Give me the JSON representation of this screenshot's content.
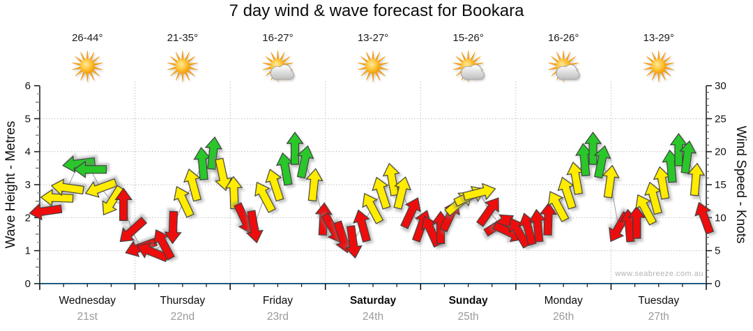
{
  "title": "7 day wind & wave forecast for Bookara",
  "watermark": "www.seabreeze.com.au",
  "chart_data": {
    "type": "wind_arrow_timeseries",
    "title": "7 day wind & wave forecast for Bookara",
    "left_axis": {
      "label": "Wave Height - Metres",
      "min": 0,
      "max": 6,
      "major_tick": 1,
      "ticks": [
        0,
        1,
        2,
        3,
        4,
        5,
        6
      ]
    },
    "right_axis": {
      "label": "Wind Speed - Knots",
      "min": 0,
      "max": 30,
      "major_tick": 5,
      "ticks": [
        0,
        5,
        10,
        15,
        20,
        25,
        30
      ]
    },
    "grid": "dotted",
    "legend_position": "none",
    "days": [
      {
        "name": "Wednesday",
        "date": "21st",
        "temp_range": "26-44°",
        "icon": "sunny-icon",
        "weekend": false
      },
      {
        "name": "Thursday",
        "date": "22nd",
        "temp_range": "21-35°",
        "icon": "sunny-icon",
        "weekend": false
      },
      {
        "name": "Friday",
        "date": "23rd",
        "temp_range": "16-27°",
        "icon": "partly-cloudy-icon",
        "weekend": false
      },
      {
        "name": "Saturday",
        "date": "24th",
        "temp_range": "13-27°",
        "icon": "sunny-icon",
        "weekend": true
      },
      {
        "name": "Sunday",
        "date": "25th",
        "temp_range": "15-26°",
        "icon": "partly-cloudy-icon",
        "weekend": true
      },
      {
        "name": "Monday",
        "date": "26th",
        "temp_range": "16-26°",
        "icon": "partly-cloudy-icon",
        "weekend": false
      },
      {
        "name": "Tuesday",
        "date": "27th",
        "temp_range": "13-29°",
        "icon": "sunny-icon",
        "weekend": false
      }
    ],
    "speed_colors": {
      "red": "#ee1111",
      "yellow": "#ffec00",
      "green": "#2cc72c"
    },
    "axis_colors": {
      "x_axis": "#1e5b80",
      "y_axis": "#222222",
      "grid": "#bdbdbd",
      "connector": "#9a9a9a"
    },
    "arrow_note": "t = time in days from start (0-7), knots = wind speed on right axis (wave metres = knots/5 on left axis), dir_deg = on-screen arrow heading (0 = up, clockwise)",
    "arrows": [
      {
        "t": 0.06,
        "knots": 11.0,
        "dir_deg": 262,
        "color": "red"
      },
      {
        "t": 0.18,
        "knots": 13.0,
        "dir_deg": 272,
        "color": "yellow"
      },
      {
        "t": 0.29,
        "knots": 14.5,
        "dir_deg": 278,
        "color": "yellow"
      },
      {
        "t": 0.41,
        "knots": 18.2,
        "dir_deg": 263,
        "color": "green"
      },
      {
        "t": 0.53,
        "knots": 17.3,
        "dir_deg": 270,
        "color": "green"
      },
      {
        "t": 0.64,
        "knots": 14.5,
        "dir_deg": 250,
        "color": "yellow"
      },
      {
        "t": 0.76,
        "knots": 12.5,
        "dir_deg": 212,
        "color": "yellow"
      },
      {
        "t": 0.88,
        "knots": 12.0,
        "dir_deg": 0,
        "color": "red"
      },
      {
        "t": 0.97,
        "knots": 8.0,
        "dir_deg": 228,
        "color": "red"
      },
      {
        "t": 1.06,
        "knots": 5.5,
        "dir_deg": 250,
        "color": "red"
      },
      {
        "t": 1.18,
        "knots": 4.8,
        "dir_deg": 292,
        "color": "red"
      },
      {
        "t": 1.3,
        "knots": 6.0,
        "dir_deg": 332,
        "color": "red"
      },
      {
        "t": 1.4,
        "knots": 8.5,
        "dir_deg": 182,
        "color": "red"
      },
      {
        "t": 1.51,
        "knots": 12.5,
        "dir_deg": 335,
        "color": "yellow"
      },
      {
        "t": 1.61,
        "knots": 15.0,
        "dir_deg": 345,
        "color": "yellow"
      },
      {
        "t": 1.71,
        "knots": 18.2,
        "dir_deg": 355,
        "color": "green"
      },
      {
        "t": 1.82,
        "knots": 19.8,
        "dir_deg": 6,
        "color": "green"
      },
      {
        "t": 1.92,
        "knots": 16.5,
        "dir_deg": 168,
        "color": "yellow"
      },
      {
        "t": 2.04,
        "knots": 13.8,
        "dir_deg": 358,
        "color": "yellow"
      },
      {
        "t": 2.15,
        "knots": 9.8,
        "dir_deg": 155,
        "color": "red"
      },
      {
        "t": 2.25,
        "knots": 8.6,
        "dir_deg": 170,
        "color": "red"
      },
      {
        "t": 2.36,
        "knots": 13.2,
        "dir_deg": 332,
        "color": "yellow"
      },
      {
        "t": 2.47,
        "knots": 15.0,
        "dir_deg": 342,
        "color": "yellow"
      },
      {
        "t": 2.58,
        "knots": 17.4,
        "dir_deg": 350,
        "color": "green"
      },
      {
        "t": 2.68,
        "knots": 20.5,
        "dir_deg": 0,
        "color": "green"
      },
      {
        "t": 2.78,
        "knots": 18.5,
        "dir_deg": 12,
        "color": "green"
      },
      {
        "t": 2.88,
        "knots": 15.0,
        "dir_deg": 6,
        "color": "yellow"
      },
      {
        "t": 2.98,
        "knots": 9.8,
        "dir_deg": 3,
        "color": "red"
      },
      {
        "t": 3.08,
        "knots": 8.3,
        "dir_deg": 150,
        "color": "red"
      },
      {
        "t": 3.18,
        "knots": 7.0,
        "dir_deg": 162,
        "color": "red"
      },
      {
        "t": 3.29,
        "knots": 6.3,
        "dir_deg": 172,
        "color": "red"
      },
      {
        "t": 3.39,
        "knots": 8.8,
        "dir_deg": 345,
        "color": "red"
      },
      {
        "t": 3.49,
        "knots": 11.5,
        "dir_deg": 332,
        "color": "yellow"
      },
      {
        "t": 3.59,
        "knots": 13.8,
        "dir_deg": 342,
        "color": "yellow"
      },
      {
        "t": 3.7,
        "knots": 15.8,
        "dir_deg": 350,
        "color": "yellow"
      },
      {
        "t": 3.8,
        "knots": 13.8,
        "dir_deg": 14,
        "color": "yellow"
      },
      {
        "t": 3.9,
        "knots": 10.8,
        "dir_deg": 25,
        "color": "red"
      },
      {
        "t": 4.01,
        "knots": 8.8,
        "dir_deg": 20,
        "color": "red"
      },
      {
        "t": 4.11,
        "knots": 8.0,
        "dir_deg": 336,
        "color": "red"
      },
      {
        "t": 4.21,
        "knots": 8.5,
        "dir_deg": 0,
        "color": "red"
      },
      {
        "t": 4.31,
        "knots": 10.3,
        "dir_deg": 25,
        "color": "red"
      },
      {
        "t": 4.41,
        "knots": 12.3,
        "dir_deg": 50,
        "color": "yellow"
      },
      {
        "t": 4.52,
        "knots": 13.3,
        "dir_deg": 65,
        "color": "yellow"
      },
      {
        "t": 4.62,
        "knots": 13.8,
        "dir_deg": 76,
        "color": "yellow"
      },
      {
        "t": 4.72,
        "knots": 11.0,
        "dir_deg": 35,
        "color": "red"
      },
      {
        "t": 4.83,
        "knots": 9.0,
        "dir_deg": 58,
        "color": "red"
      },
      {
        "t": 4.93,
        "knots": 7.8,
        "dir_deg": 115,
        "color": "red"
      },
      {
        "t": 5.03,
        "knots": 7.8,
        "dir_deg": 330,
        "color": "red"
      },
      {
        "t": 5.13,
        "knots": 8.3,
        "dir_deg": 345,
        "color": "red"
      },
      {
        "t": 5.23,
        "knots": 8.8,
        "dir_deg": 355,
        "color": "red"
      },
      {
        "t": 5.34,
        "knots": 9.8,
        "dir_deg": 2,
        "color": "red"
      },
      {
        "t": 5.44,
        "knots": 11.8,
        "dir_deg": 332,
        "color": "yellow"
      },
      {
        "t": 5.54,
        "knots": 13.8,
        "dir_deg": 342,
        "color": "yellow"
      },
      {
        "t": 5.63,
        "knots": 16.0,
        "dir_deg": 350,
        "color": "yellow"
      },
      {
        "t": 5.72,
        "knots": 18.8,
        "dir_deg": 355,
        "color": "green"
      },
      {
        "t": 5.81,
        "knots": 20.5,
        "dir_deg": 0,
        "color": "green"
      },
      {
        "t": 5.9,
        "knots": 18.5,
        "dir_deg": 12,
        "color": "green"
      },
      {
        "t": 5.99,
        "knots": 15.5,
        "dir_deg": 8,
        "color": "yellow"
      },
      {
        "t": 6.08,
        "knots": 8.5,
        "dir_deg": 210,
        "color": "red"
      },
      {
        "t": 6.19,
        "knots": 8.8,
        "dir_deg": 355,
        "color": "red"
      },
      {
        "t": 6.27,
        "knots": 9.3,
        "dir_deg": 0,
        "color": "red"
      },
      {
        "t": 6.36,
        "knots": 11.3,
        "dir_deg": 332,
        "color": "yellow"
      },
      {
        "t": 6.45,
        "knots": 13.0,
        "dir_deg": 345,
        "color": "yellow"
      },
      {
        "t": 6.54,
        "knots": 15.3,
        "dir_deg": 350,
        "color": "yellow"
      },
      {
        "t": 6.63,
        "knots": 17.8,
        "dir_deg": 355,
        "color": "green"
      },
      {
        "t": 6.71,
        "knots": 20.3,
        "dir_deg": 0,
        "color": "green"
      },
      {
        "t": 6.8,
        "knots": 19.2,
        "dir_deg": 8,
        "color": "green"
      },
      {
        "t": 6.89,
        "knots": 15.8,
        "dir_deg": 5,
        "color": "yellow"
      },
      {
        "t": 6.98,
        "knots": 10.0,
        "dir_deg": 340,
        "color": "red"
      }
    ]
  }
}
